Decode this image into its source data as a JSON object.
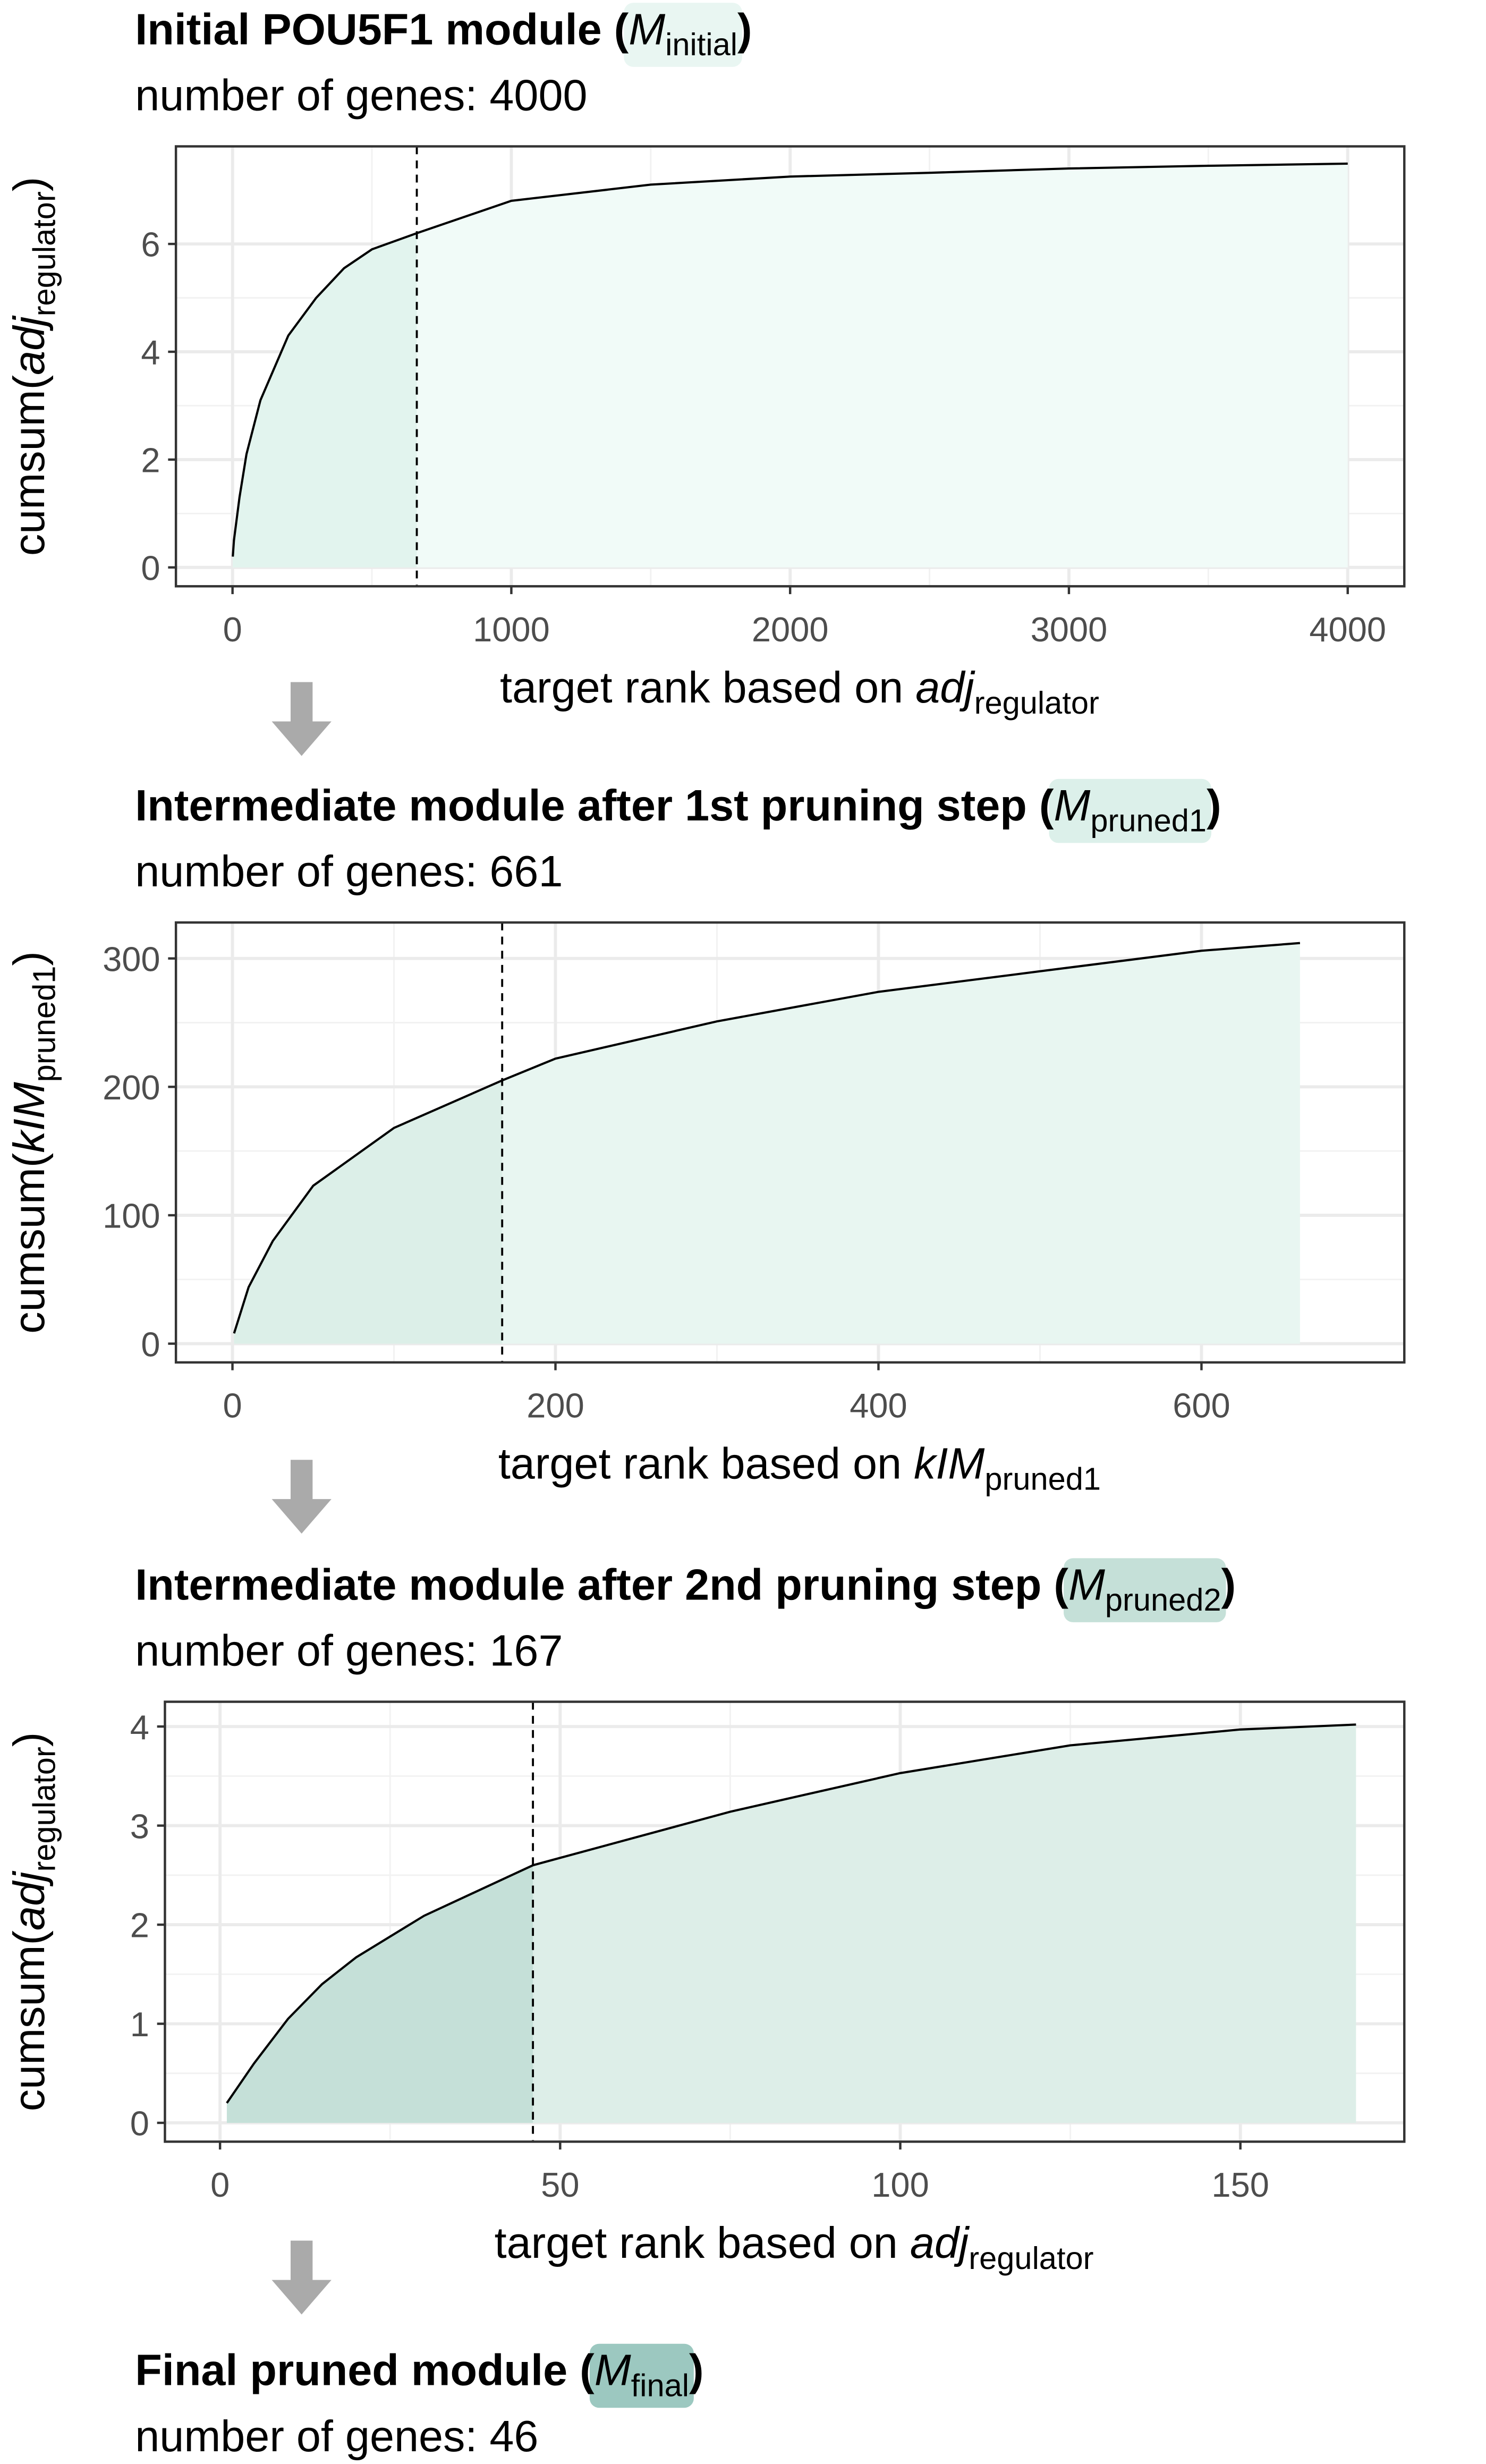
{
  "chart_data": [
    {
      "type": "area",
      "title": [
        {
          "text": "Initial POU5F1 module ("
        },
        {
          "text": "M",
          "style": "italic"
        },
        {
          "text": "initial",
          "style": "sub"
        },
        {
          "text": ")"
        }
      ],
      "subtitle": "number of genes: 4000",
      "ylabel": [
        {
          "text": "cumsum("
        },
        {
          "text": "adj",
          "style": "italic"
        },
        {
          "text": "regulator",
          "style": "sub"
        },
        {
          "text": ")"
        }
      ],
      "xlabel": [
        {
          "text": "target rank based on "
        },
        {
          "text": "adj",
          "style": "italic"
        },
        {
          "text": "regulator",
          "style": "sub"
        }
      ],
      "x": [
        1,
        5,
        25,
        50,
        100,
        200,
        300,
        400,
        500,
        661,
        1000,
        1500,
        2000,
        2500,
        3000,
        3500,
        4000
      ],
      "values": [
        0.2,
        0.5,
        1.3,
        2.1,
        3.1,
        4.3,
        5.0,
        5.55,
        5.9,
        6.2,
        6.8,
        7.1,
        7.25,
        7.32,
        7.4,
        7.45,
        7.49
      ],
      "cutoff": 661,
      "xlim": [
        -203,
        4203
      ],
      "ylim": [
        -0.35,
        7.81
      ],
      "xticks": [
        0,
        1000,
        2000,
        3000,
        4000
      ],
      "yticks": [
        0,
        2,
        4,
        6
      ],
      "grid": true,
      "color": "#000000",
      "fill_color": "#f1fbf8",
      "cutoff_fill_color": "#e2f4ee",
      "highlight_color": "#e9f6f2"
    },
    {
      "type": "area",
      "title": [
        {
          "text": "Intermediate module after 1st pruning step ("
        },
        {
          "text": "M",
          "style": "italic"
        },
        {
          "text": "pruned1",
          "style": "sub"
        },
        {
          "text": ")"
        }
      ],
      "subtitle": "number of genes: 661",
      "ylabel": [
        {
          "text": "cumsum("
        },
        {
          "text": "kIM",
          "style": "italic"
        },
        {
          "text": "pruned1",
          "style": "sub"
        },
        {
          "text": ")"
        }
      ],
      "xlabel": [
        {
          "text": "target rank based on "
        },
        {
          "text": "kIM",
          "style": "italic"
        },
        {
          "text": "pruned1",
          "style": "sub"
        }
      ],
      "x": [
        1,
        10,
        25,
        50,
        100,
        167,
        200,
        300,
        400,
        500,
        600,
        661
      ],
      "values": [
        8,
        44,
        80,
        123,
        168,
        205,
        222,
        251,
        274,
        290,
        306,
        312
      ],
      "cutoff": 167,
      "xlim": [
        -35,
        725.6
      ],
      "ylim": [
        -14.6,
        328
      ],
      "xticks": [
        0,
        200,
        400,
        600
      ],
      "yticks": [
        0,
        100,
        200,
        300
      ],
      "grid": true,
      "color": "#000000",
      "fill_color": "#e8f6f1",
      "cutoff_fill_color": "#dcefe8",
      "highlight_color": "#dcf0ea"
    },
    {
      "type": "area",
      "title": [
        {
          "text": "Intermediate module after 2nd pruning step ("
        },
        {
          "text": "M",
          "style": "italic"
        },
        {
          "text": "pruned2",
          "style": "sub"
        },
        {
          "text": ")"
        }
      ],
      "subtitle": "number of genes: 167",
      "ylabel": [
        {
          "text": "cumsum("
        },
        {
          "text": "adj",
          "style": "italic"
        },
        {
          "text": "regulator",
          "style": "sub"
        },
        {
          "text": ")"
        }
      ],
      "xlabel": [
        {
          "text": "target rank based on "
        },
        {
          "text": "adj",
          "style": "italic"
        },
        {
          "text": "regulator",
          "style": "sub"
        }
      ],
      "x": [
        1,
        5,
        10,
        15,
        20,
        30,
        46,
        75,
        100,
        125,
        150,
        167
      ],
      "values": [
        0.2,
        0.6,
        1.05,
        1.4,
        1.67,
        2.09,
        2.6,
        3.14,
        3.53,
        3.81,
        3.97,
        4.02
      ],
      "cutoff": 46,
      "xlim": [
        -8.1,
        174.1
      ],
      "ylim": [
        -0.19,
        4.25
      ],
      "xticks": [
        0,
        50,
        100,
        150
      ],
      "yticks": [
        0,
        1,
        2,
        3,
        4
      ],
      "grid": true,
      "color": "#000000",
      "fill_color": "#ddeee8",
      "cutoff_fill_color": "#c5e0d8",
      "highlight_color": "#c5e0d8"
    }
  ],
  "final_module": {
    "title": [
      {
        "text": "Final pruned module ("
      },
      {
        "text": "M",
        "style": "italic"
      },
      {
        "text": "final",
        "style": "sub"
      },
      {
        "text": ")"
      }
    ],
    "subtitle": "number of genes: 46",
    "highlight_color": "#9cc8c0"
  }
}
